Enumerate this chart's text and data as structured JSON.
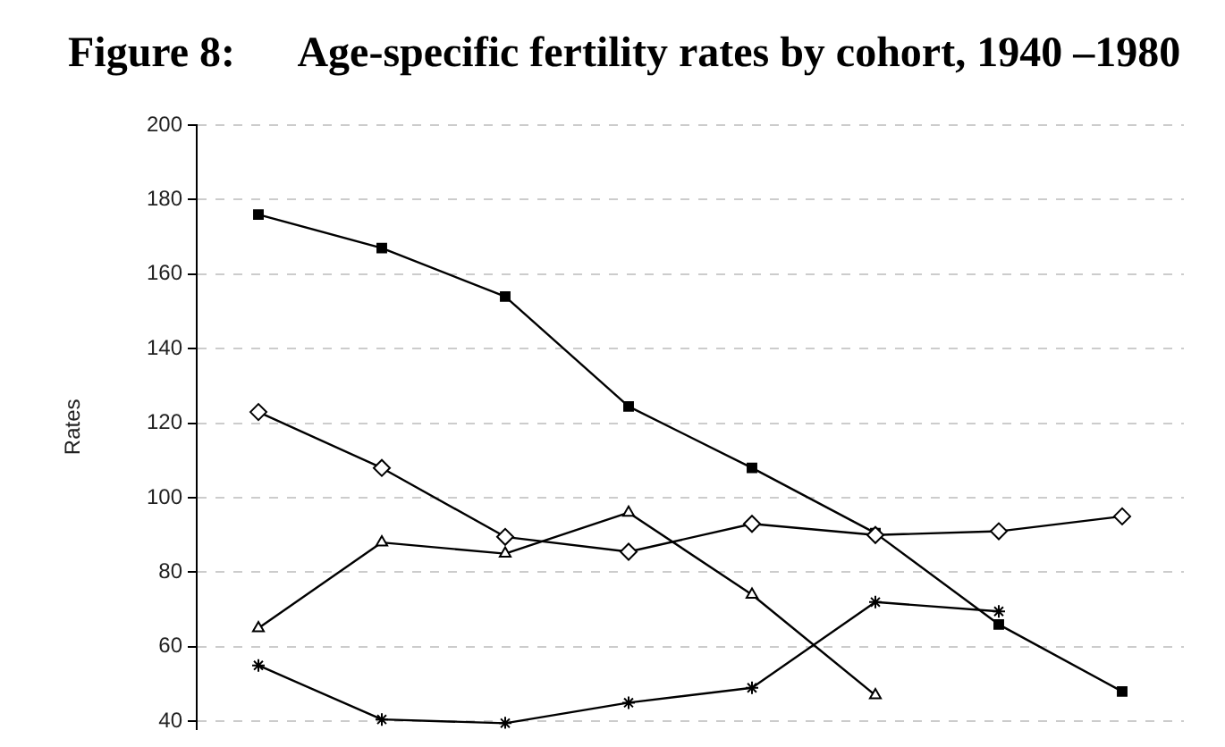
{
  "chart_data": {
    "type": "line",
    "title": "Figure 8:      Age-specific fertility rates by cohort, 1940 –1980",
    "ylabel": "Rates",
    "categories": [
      null,
      null,
      null,
      null,
      null,
      null,
      null,
      null
    ],
    "series": [
      {
        "color": "#000000",
        "marker": "square",
        "values": [
          176,
          167,
          154,
          124.5,
          108,
          90.5,
          66,
          48
        ]
      },
      {
        "color": "#000000",
        "marker": "diamond",
        "values": [
          123,
          108,
          89.5,
          85.5,
          93,
          90,
          91,
          95
        ]
      },
      {
        "color": "#000000",
        "marker": "triangle",
        "values": [
          65,
          88,
          85,
          96,
          74,
          47,
          null,
          null
        ]
      },
      {
        "color": "#000000",
        "marker": "cross",
        "values": [
          55,
          40.5,
          39.5,
          45,
          49,
          72,
          69.5,
          null
        ]
      }
    ],
    "ylim": [
      38,
      200
    ],
    "yticks": [
      40,
      60,
      80,
      100,
      120,
      140,
      160,
      180,
      200
    ],
    "grid": "y",
    "tick_labels": "y",
    "line_style": "solid"
  }
}
